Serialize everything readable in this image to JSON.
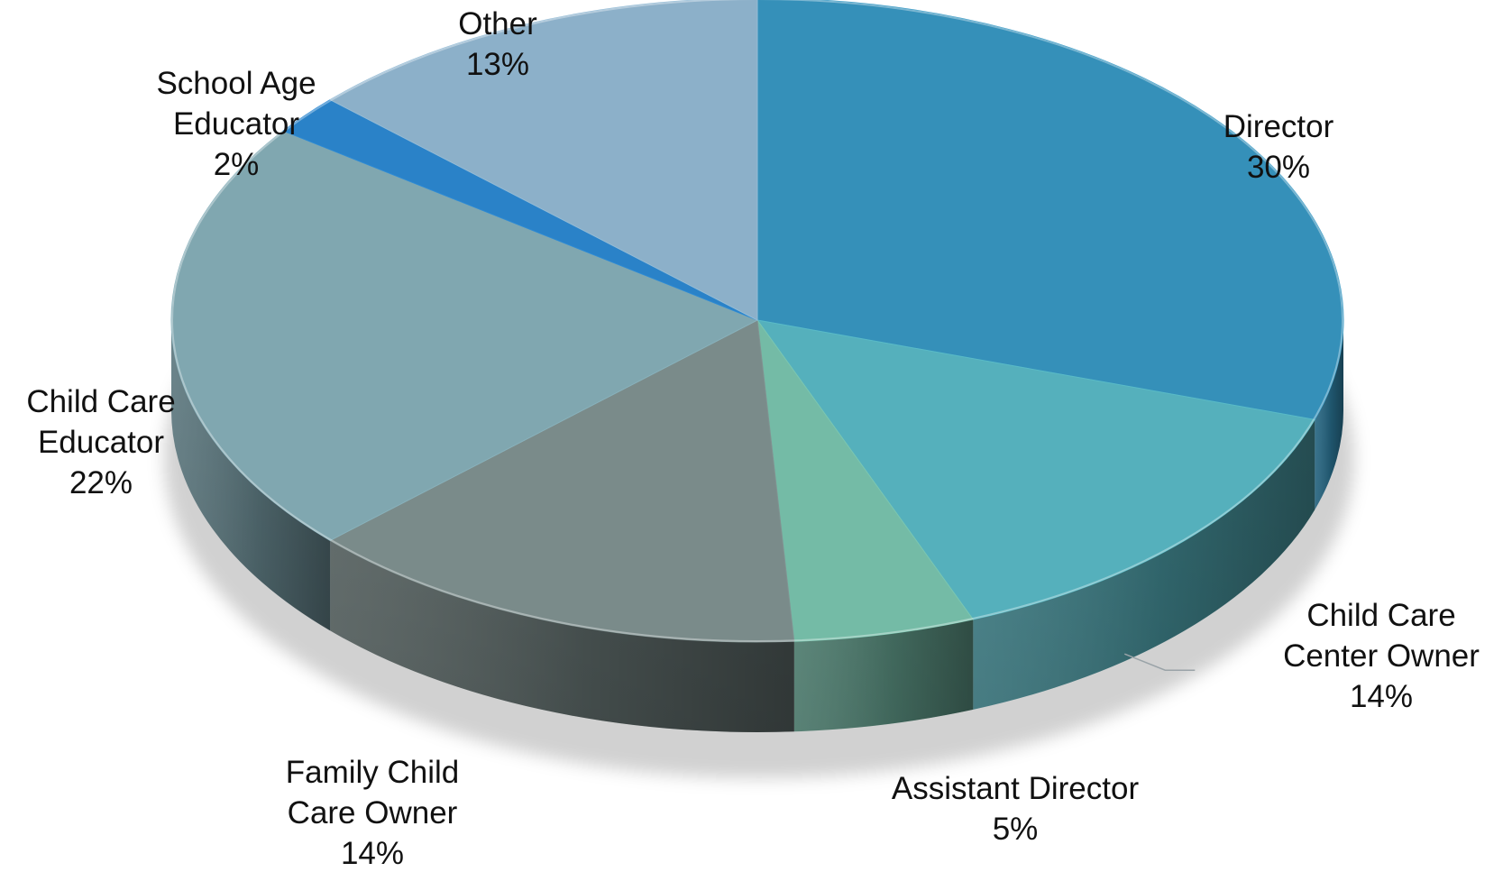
{
  "chart_data": {
    "type": "pie",
    "style": "3d",
    "labels_position": "outside",
    "legend": "none",
    "slices": [
      {
        "label": "Director",
        "name_lines": [
          "Director"
        ],
        "pct_text": "30%",
        "value": 30,
        "color": "#3590b9"
      },
      {
        "label": "Child Care Center Owner",
        "name_lines": [
          "Child Care",
          "Center Owner"
        ],
        "pct_text": "14%",
        "value": 14,
        "color": "#55b0bc"
      },
      {
        "label": "Assistant Director",
        "name_lines": [
          "Assistant Director"
        ],
        "pct_text": "5%",
        "value": 5,
        "color": "#74bba6"
      },
      {
        "label": "Family Child Care Owner",
        "name_lines": [
          "Family Child",
          "Care Owner"
        ],
        "pct_text": "14%",
        "value": 14,
        "color": "#7a8b8a"
      },
      {
        "label": "Child Care Educator",
        "name_lines": [
          "Child Care",
          "Educator"
        ],
        "pct_text": "22%",
        "value": 22,
        "color": "#80a7b0"
      },
      {
        "label": "School Age Educator",
        "name_lines": [
          "School Age",
          "Educator"
        ],
        "pct_text": "2%",
        "value": 2,
        "color": "#2a82c8"
      },
      {
        "label": "Other",
        "name_lines": [
          "Other"
        ],
        "pct_text": "13%",
        "value": 13,
        "color": "#8cb0c9"
      }
    ]
  }
}
